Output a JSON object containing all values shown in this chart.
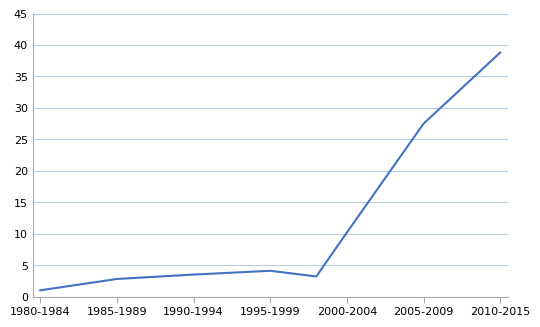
{
  "categories": [
    "1980-1984",
    "1985-1989",
    "1990-1994",
    "1995-1999",
    "2000-2004",
    "2005-2009",
    "2010-2015"
  ],
  "line_color": "#4472C4",
  "background_color": "#ffffff",
  "grid_color": "#b8cce4",
  "ylim": [
    0,
    45
  ],
  "yticks": [
    0,
    5,
    10,
    15,
    20,
    25,
    30,
    35,
    40,
    45
  ],
  "x_data": [
    0,
    1,
    2,
    3,
    3.6,
    4,
    5,
    6
  ],
  "y_data": [
    1.0,
    2.8,
    3.5,
    4.1,
    3.2,
    10.2,
    27.5,
    38.8
  ],
  "tick_color": "#aaaaaa",
  "spine_color": "#aaaaaa",
  "label_fontsize": 8,
  "linewidth": 1.5
}
